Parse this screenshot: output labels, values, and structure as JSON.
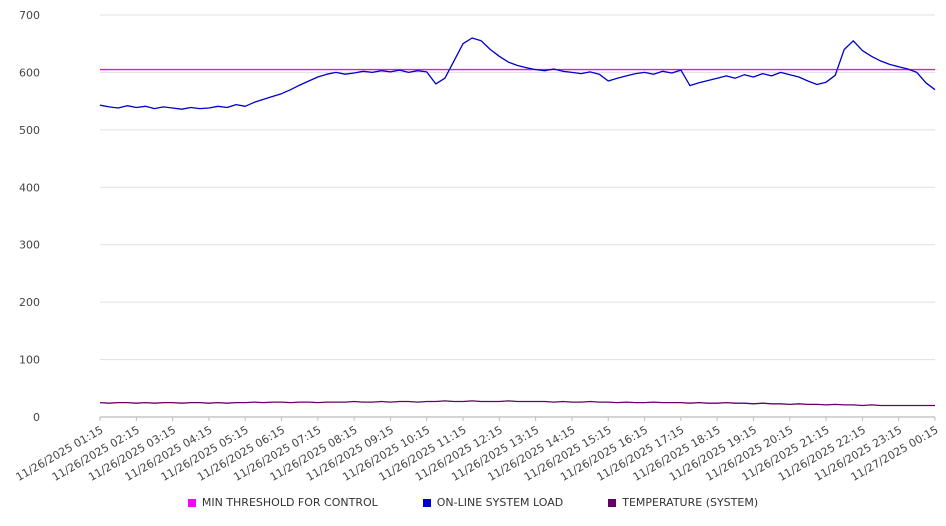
{
  "chart_data": {
    "type": "line",
    "title": "",
    "xlabel": "",
    "ylabel": "",
    "ylim": [
      0,
      700
    ],
    "yticks": [
      0,
      100,
      200,
      300,
      400,
      500,
      600,
      700
    ],
    "grid": true,
    "legend_position": "bottom",
    "points_per_category": 4,
    "categories": [
      "11/26/2025 01:15",
      "11/26/2025 02:15",
      "11/26/2025 03:15",
      "11/26/2025 04:15",
      "11/26/2025 05:15",
      "11/26/2025 06:15",
      "11/26/2025 07:15",
      "11/26/2025 08:15",
      "11/26/2025 09:15",
      "11/26/2025 10:15",
      "11/26/2025 11:15",
      "11/26/2025 12:15",
      "11/26/2025 13:15",
      "11/26/2025 14:15",
      "11/26/2025 15:15",
      "11/26/2025 16:15",
      "11/26/2025 17:15",
      "11/26/2025 18:15",
      "11/26/2025 19:15",
      "11/26/2025 20:15",
      "11/26/2025 21:15",
      "11/26/2025 22:15",
      "11/26/2025 23:15",
      "11/27/2025 00:15"
    ],
    "series": [
      {
        "name": "MIN THRESHOLD FOR CONTROL",
        "color": "#ff00ff",
        "constant": 605
      },
      {
        "name": "ON-LINE SYSTEM LOAD",
        "color": "#0000cc",
        "values": [
          543,
          540,
          538,
          542,
          539,
          541,
          537,
          540,
          538,
          536,
          539,
          537,
          538,
          541,
          539,
          544,
          541,
          548,
          553,
          558,
          563,
          570,
          578,
          585,
          592,
          597,
          600,
          597,
          599,
          602,
          600,
          603,
          601,
          604,
          600,
          603,
          601,
          580,
          590,
          620,
          650,
          660,
          655,
          640,
          628,
          618,
          612,
          608,
          605,
          603,
          606,
          602,
          600,
          598,
          601,
          597,
          585,
          590,
          594,
          598,
          600,
          597,
          602,
          599,
          604,
          577,
          582,
          586,
          590,
          594,
          590,
          596,
          592,
          598,
          594,
          600,
          596,
          592,
          585,
          579,
          583,
          595,
          640,
          655,
          638,
          628,
          620,
          614,
          610,
          606,
          600,
          582,
          570
        ]
      },
      {
        "name": "TEMPERATURE (SYSTEM)",
        "color": "#660066",
        "values": [
          25,
          24,
          25,
          25,
          24,
          25,
          24,
          25,
          25,
          24,
          25,
          25,
          24,
          25,
          24,
          25,
          25,
          26,
          25,
          26,
          26,
          25,
          26,
          26,
          25,
          26,
          26,
          26,
          27,
          26,
          26,
          27,
          26,
          27,
          27,
          26,
          27,
          27,
          28,
          27,
          27,
          28,
          27,
          27,
          27,
          28,
          27,
          27,
          27,
          27,
          26,
          27,
          26,
          26,
          27,
          26,
          26,
          25,
          26,
          25,
          25,
          26,
          25,
          25,
          25,
          24,
          25,
          24,
          24,
          25,
          24,
          24,
          23,
          24,
          23,
          23,
          22,
          23,
          22,
          22,
          21,
          22,
          21,
          21,
          20,
          21,
          20,
          20,
          20,
          20,
          20,
          20,
          20
        ]
      }
    ]
  }
}
